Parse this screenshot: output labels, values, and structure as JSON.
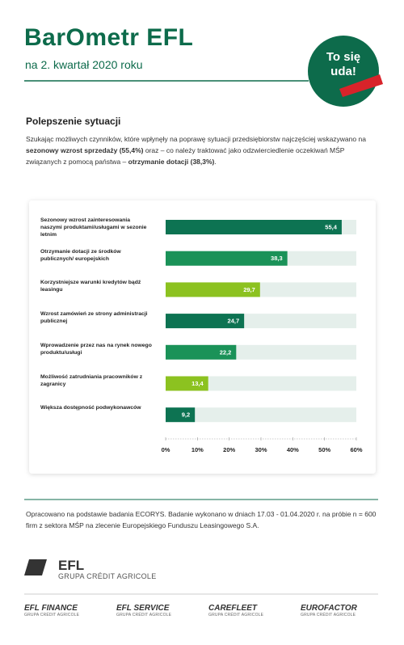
{
  "header": {
    "logo": "BarOmetr EFL",
    "subtitle": "na 2. kwartał 2020 roku",
    "badge": [
      "To się",
      "uda!"
    ]
  },
  "section_title": "Polepszenie sytuacji",
  "intro": [
    {
      "text": "Szukając możliwych czynników, które wpłynęły na poprawę sytuacji przedsiębiorstw najczęściej wskazywano na ",
      "bold": false
    },
    {
      "text": "sezonowy wzrost sprzedaży (55,4%)",
      "bold": true
    },
    {
      "text": " oraz – co należy traktować jako odzwierciedlenie oczekiwań MŚP związanych z pomocą państwa – ",
      "bold": false
    },
    {
      "text": "otrzymanie dotacji (38,3%)",
      "bold": true
    },
    {
      "text": ".",
      "bold": false
    }
  ],
  "chart_data": {
    "type": "bar",
    "orientation": "horizontal",
    "categories": [
      "Sezonowy wzrost zainteresowania naszymi produktami/usługami w sezonie letnim",
      "Otrzymanie dotacji ze środków publicznych/ europejskich",
      "Korzystniejsze warunki kredytów bądź leasingu",
      "Wzrost zamówień ze strony administracji publicznej",
      "Wprowadzenie przez nas na rynek nowego produktu/usługi",
      "Możliwość zatrudniania pracowników z zagranicy",
      "Większa dostępność podwykonawców"
    ],
    "values": [
      55.4,
      38.3,
      29.7,
      24.7,
      22.2,
      13.4,
      9.2
    ],
    "value_labels": [
      "55,4",
      "38,3",
      "29,7",
      "24,7",
      "22,2",
      "13,4",
      "9,2"
    ],
    "colors": [
      "#0d7352",
      "#1a9258",
      "#8cc220",
      "#0d7352",
      "#1a9258",
      "#8cc220",
      "#0d7352"
    ],
    "track_color": "#e5efeb",
    "xlim": [
      0,
      60
    ],
    "xticks": [
      {
        "value": 0,
        "label": "0%"
      },
      {
        "value": 10,
        "label": "10%"
      },
      {
        "value": 20,
        "label": "20%"
      },
      {
        "value": 30,
        "label": "30%"
      },
      {
        "value": 40,
        "label": "40%"
      },
      {
        "value": 50,
        "label": "50%"
      },
      {
        "value": 60,
        "label": "60%"
      }
    ]
  },
  "source": "Opracowano na podstawie badania ECORYS. Badanie wykonano w dniach 17.03 - 01.04.2020 r. na próbie n = 600 firm z sektora MŚP na zlecenie Europejskiego Funduszu Leasingowego S.A.",
  "footer_logo": {
    "name": "EFL",
    "group": "GRUPA CRÉDIT AGRICOLE"
  },
  "brands": [
    {
      "name": "EFL FINANCE",
      "group": "GRUPA CRÉDIT AGRICOLE"
    },
    {
      "name": "EFL SERVICE",
      "group": "GRUPA CRÉDIT AGRICOLE"
    },
    {
      "name": "CAREFLEET",
      "group": "GRUPA CRÉDIT AGRICOLE"
    },
    {
      "name": "EUROFACTOR",
      "group": "GRUPA CRÉDIT AGRICOLE"
    }
  ]
}
